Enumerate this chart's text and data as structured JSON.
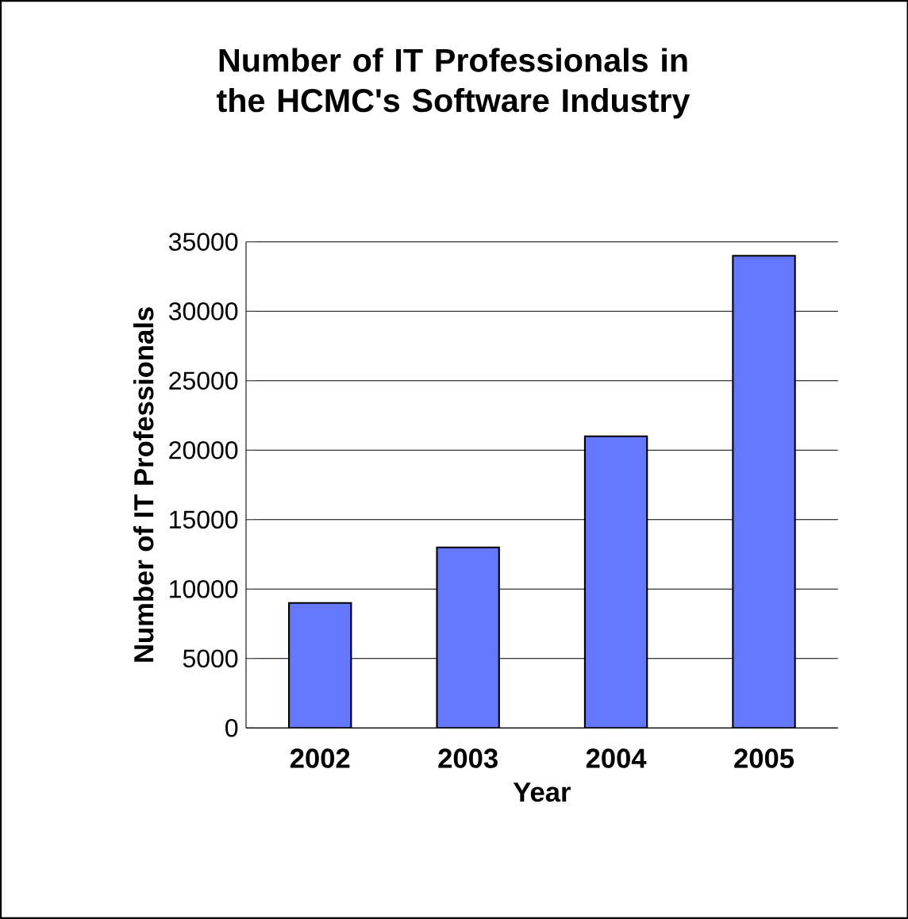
{
  "chart_data": {
    "type": "bar",
    "title": "Number of IT Professionals in the HCMC's Software Industry",
    "xlabel": "Year",
    "ylabel": "Number of IT Professionals",
    "categories": [
      "2002",
      "2003",
      "2004",
      "2005"
    ],
    "values": [
      9000,
      13000,
      21000,
      34000
    ],
    "color": "#6677ff",
    "ylim": [
      0,
      35000
    ],
    "yticks": [
      0,
      5000,
      10000,
      15000,
      20000,
      25000,
      30000,
      35000
    ],
    "grid": "y"
  }
}
